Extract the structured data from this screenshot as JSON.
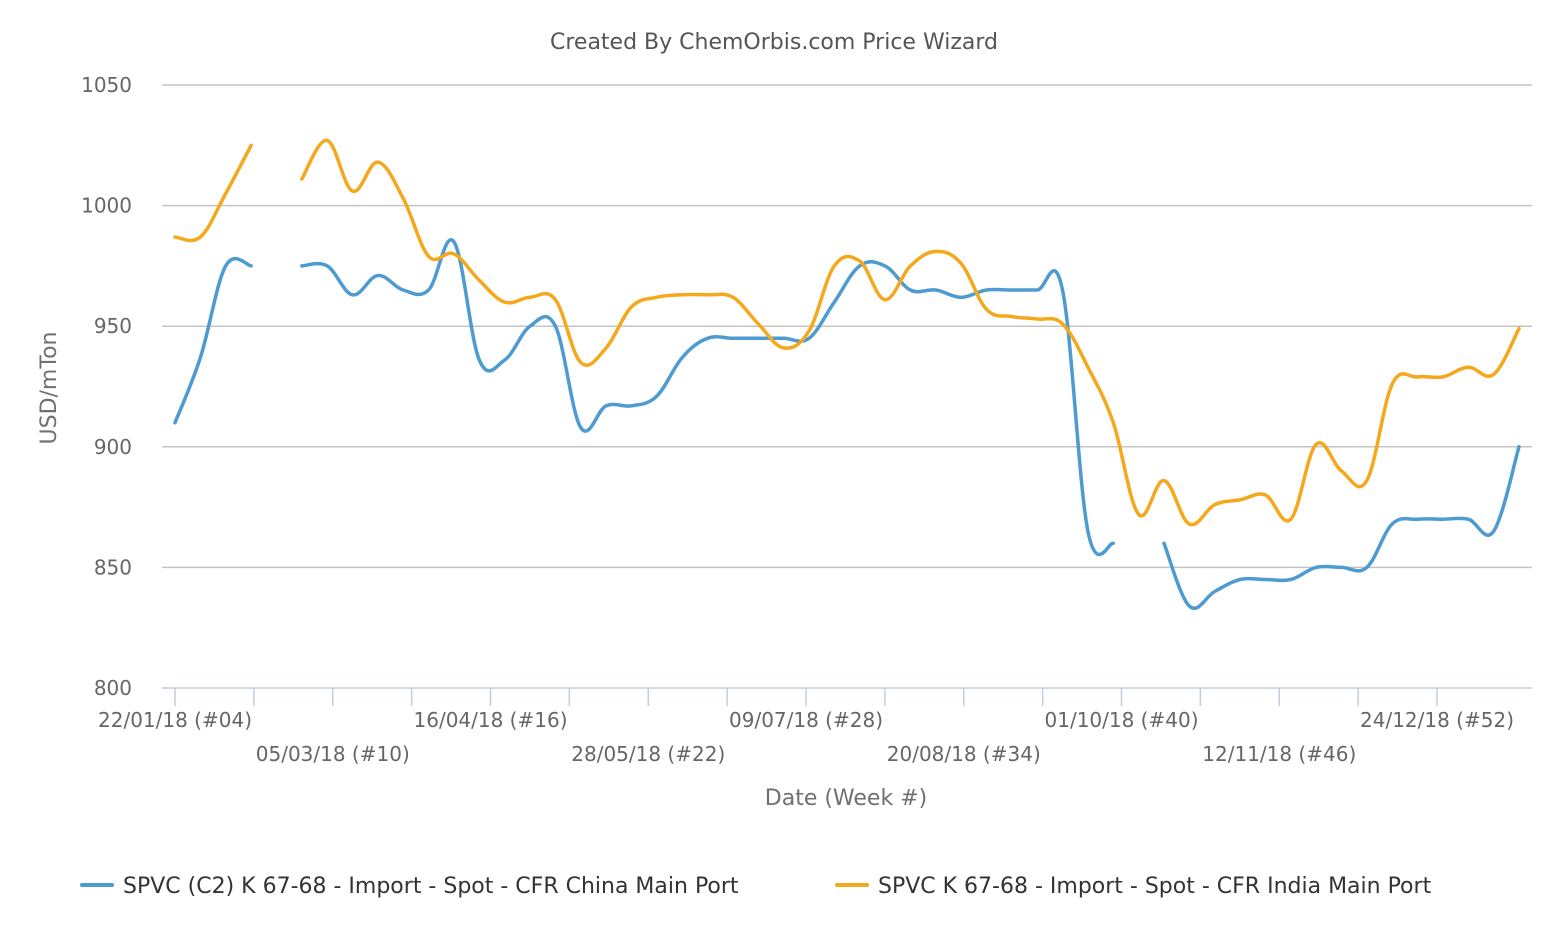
{
  "chart_data": {
    "type": "line",
    "title": "Created By ChemOrbis.com Price Wizard",
    "xlabel": "Date (Week #)",
    "ylabel": "USD/mTon",
    "ylim": [
      800,
      1050
    ],
    "yticks": [
      800,
      850,
      900,
      950,
      1000,
      1050
    ],
    "grid": true,
    "legend": "bottom",
    "x_tick_labels": [
      "22/01/18 (#04)",
      "05/03/18 (#10)",
      "16/04/18 (#16)",
      "28/05/18 (#22)",
      "09/07/18 (#28)",
      "20/08/18 (#34)",
      "01/10/18 (#40)",
      "12/11/18 (#46)",
      "24/12/18 (#52)"
    ],
    "x_tick_weeks": [
      4,
      10,
      16,
      22,
      28,
      34,
      40,
      46,
      52
    ],
    "xlim_weeks": [
      3.2,
      53.1
    ],
    "series": [
      {
        "name": "SPVC (C2) K 67-68 - Import - Spot - CFR China Main Port",
        "color": "#4d9bd1",
        "points": [
          [
            4,
            910
          ],
          [
            5,
            937
          ],
          [
            6,
            975
          ],
          [
            7,
            975
          ],
          [
            null,
            null
          ],
          [
            9,
            975
          ],
          [
            10,
            975
          ],
          [
            11,
            963
          ],
          [
            12,
            971
          ],
          [
            13,
            965
          ],
          [
            14,
            965
          ],
          [
            15,
            985
          ],
          [
            16,
            936
          ],
          [
            17,
            936
          ],
          [
            18,
            950
          ],
          [
            19,
            950
          ],
          [
            20,
            908
          ],
          [
            21,
            917
          ],
          [
            22,
            917
          ],
          [
            23,
            921
          ],
          [
            24,
            937
          ],
          [
            25,
            945
          ],
          [
            26,
            945
          ],
          [
            27,
            945
          ],
          [
            28,
            945
          ],
          [
            29,
            945
          ],
          [
            30,
            960
          ],
          [
            31,
            975
          ],
          [
            32,
            975
          ],
          [
            33,
            965
          ],
          [
            34,
            965
          ],
          [
            35,
            962
          ],
          [
            36,
            965
          ],
          [
            37,
            965
          ],
          [
            38,
            965
          ],
          [
            39,
            965
          ],
          [
            40,
            865
          ],
          [
            41,
            860
          ],
          [
            null,
            null
          ],
          [
            43,
            860
          ],
          [
            44,
            834
          ],
          [
            45,
            840
          ],
          [
            46,
            845
          ],
          [
            47,
            845
          ],
          [
            48,
            845
          ],
          [
            49,
            850
          ],
          [
            50,
            850
          ],
          [
            51,
            850
          ],
          [
            52,
            868
          ],
          [
            53,
            870
          ],
          [
            54,
            870
          ],
          [
            55,
            870
          ],
          [
            56,
            865
          ],
          [
            57,
            900
          ]
        ]
      },
      {
        "name": "SPVC K 67-68 - Import - Spot - CFR India Main Port",
        "color": "#f5a81c",
        "points": [
          [
            4,
            987
          ],
          [
            5,
            987
          ],
          [
            6,
            1005
          ],
          [
            7,
            1025
          ],
          [
            null,
            null
          ],
          [
            9,
            1011
          ],
          [
            10,
            1027
          ],
          [
            11,
            1006
          ],
          [
            12,
            1018
          ],
          [
            13,
            1003
          ],
          [
            14,
            979
          ],
          [
            15,
            980
          ],
          [
            16,
            969
          ],
          [
            17,
            960
          ],
          [
            18,
            962
          ],
          [
            19,
            961
          ],
          [
            20,
            935
          ],
          [
            21,
            941
          ],
          [
            22,
            958
          ],
          [
            23,
            962
          ],
          [
            24,
            963
          ],
          [
            25,
            963
          ],
          [
            26,
            962
          ],
          [
            27,
            951
          ],
          [
            28,
            941
          ],
          [
            29,
            948
          ],
          [
            30,
            975
          ],
          [
            31,
            977
          ],
          [
            32,
            961
          ],
          [
            33,
            975
          ],
          [
            34,
            981
          ],
          [
            35,
            976
          ],
          [
            36,
            957
          ],
          [
            37,
            954
          ],
          [
            38,
            953
          ],
          [
            39,
            951
          ],
          [
            40,
            933
          ],
          [
            41,
            910
          ],
          [
            42,
            872
          ],
          [
            43,
            886
          ],
          [
            44,
            868
          ],
          [
            45,
            876
          ],
          [
            46,
            878
          ],
          [
            47,
            880
          ],
          [
            48,
            870
          ],
          [
            49,
            901
          ],
          [
            50,
            890
          ],
          [
            51,
            886
          ],
          [
            52,
            926
          ],
          [
            53,
            929
          ],
          [
            54,
            929
          ],
          [
            55,
            933
          ],
          [
            56,
            930
          ],
          [
            57,
            949
          ]
        ]
      }
    ]
  }
}
